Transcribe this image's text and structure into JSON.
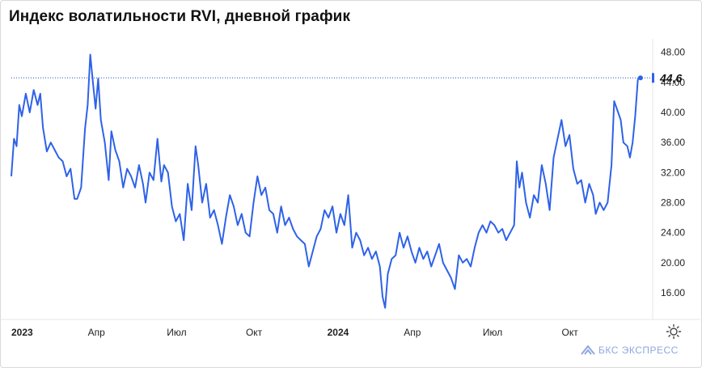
{
  "title": "Индекс волатильности RVI, дневной график",
  "brand": "БКС ЭКСПРЕСС",
  "icons": {
    "settings": "settings-sun-icon",
    "brand": "bks-logo-icon"
  },
  "colors": {
    "line": "#2e62e8",
    "guide": "#1f4fd1",
    "grid": "#e3e3e3",
    "text": "#222222",
    "brand": "#8fa7df"
  },
  "chart_data": {
    "type": "line",
    "title": "Индекс волатильности RVI, дневной график",
    "xlabel": "",
    "ylabel": "",
    "ylim": [
      12,
      50
    ],
    "yticks": [
      "48.00",
      "44.00",
      "40.00",
      "36.00",
      "32.00",
      "28.00",
      "24.00",
      "20.00",
      "16.00"
    ],
    "ytick_values": [
      48,
      44,
      40,
      36,
      32,
      28,
      24,
      20,
      16
    ],
    "x_ticks": [
      {
        "label": "2023",
        "month": 0,
        "bold": true
      },
      {
        "label": "Апр",
        "month": 3,
        "bold": false
      },
      {
        "label": "Июл",
        "month": 6,
        "bold": false
      },
      {
        "label": "Окт",
        "month": 9,
        "bold": false
      },
      {
        "label": "2024",
        "month": 12,
        "bold": true
      },
      {
        "label": "Апр",
        "month": 15,
        "bold": false
      },
      {
        "label": "Июл",
        "month": 18,
        "bold": false
      },
      {
        "label": "Окт",
        "month": 21,
        "bold": false
      }
    ],
    "last_value": 44.6,
    "last_value_label": "44,6",
    "y_axis_position": "right",
    "grid": false,
    "series": [
      {
        "x_unit": "months since 2023-01",
        "points": [
          [
            0.0,
            31.5
          ],
          [
            0.1,
            36.5
          ],
          [
            0.2,
            35.5
          ],
          [
            0.3,
            41
          ],
          [
            0.4,
            39.5
          ],
          [
            0.55,
            42.5
          ],
          [
            0.7,
            40
          ],
          [
            0.85,
            43
          ],
          [
            1.0,
            41
          ],
          [
            1.1,
            42.5
          ],
          [
            1.2,
            38
          ],
          [
            1.35,
            34.8
          ],
          [
            1.5,
            36
          ],
          [
            1.65,
            35
          ],
          [
            1.8,
            34
          ],
          [
            1.95,
            33.5
          ],
          [
            2.1,
            31.5
          ],
          [
            2.25,
            32.5
          ],
          [
            2.4,
            28.5
          ],
          [
            2.5,
            28.5
          ],
          [
            2.65,
            30
          ],
          [
            2.8,
            37.8
          ],
          [
            2.9,
            41
          ],
          [
            3.0,
            47.7
          ],
          [
            3.1,
            44
          ],
          [
            3.2,
            40.5
          ],
          [
            3.3,
            44.5
          ],
          [
            3.4,
            39
          ],
          [
            3.55,
            36
          ],
          [
            3.7,
            31
          ],
          [
            3.8,
            37.5
          ],
          [
            3.95,
            35
          ],
          [
            4.1,
            33.5
          ],
          [
            4.25,
            30
          ],
          [
            4.4,
            32.5
          ],
          [
            4.55,
            31.5
          ],
          [
            4.7,
            30
          ],
          [
            4.85,
            33
          ],
          [
            5.0,
            30.5
          ],
          [
            5.1,
            28
          ],
          [
            5.25,
            32
          ],
          [
            5.4,
            31
          ],
          [
            5.55,
            36.5
          ],
          [
            5.7,
            30.8
          ],
          [
            5.8,
            33
          ],
          [
            5.95,
            32
          ],
          [
            6.1,
            27.5
          ],
          [
            6.25,
            25.5
          ],
          [
            6.4,
            26.5
          ],
          [
            6.55,
            23
          ],
          [
            6.7,
            30.5
          ],
          [
            6.85,
            27
          ],
          [
            7.0,
            35.5
          ],
          [
            7.1,
            33
          ],
          [
            7.25,
            28
          ],
          [
            7.4,
            30.5
          ],
          [
            7.55,
            26
          ],
          [
            7.7,
            27
          ],
          [
            7.85,
            25
          ],
          [
            8.0,
            22.5
          ],
          [
            8.15,
            26
          ],
          [
            8.3,
            29
          ],
          [
            8.45,
            27.5
          ],
          [
            8.6,
            25
          ],
          [
            8.75,
            26.5
          ],
          [
            8.9,
            24
          ],
          [
            9.05,
            23.5
          ],
          [
            9.2,
            28
          ],
          [
            9.35,
            31.5
          ],
          [
            9.5,
            29
          ],
          [
            9.65,
            30
          ],
          [
            9.8,
            27
          ],
          [
            9.95,
            26.5
          ],
          [
            10.1,
            24
          ],
          [
            10.25,
            27.5
          ],
          [
            10.4,
            25
          ],
          [
            10.55,
            26
          ],
          [
            10.7,
            24.5
          ],
          [
            10.85,
            23.5
          ],
          [
            11.0,
            23
          ],
          [
            11.15,
            22.5
          ],
          [
            11.3,
            19.5
          ],
          [
            11.45,
            21.5
          ],
          [
            11.6,
            23.5
          ],
          [
            11.75,
            24.5
          ],
          [
            11.9,
            27
          ],
          [
            12.05,
            26
          ],
          [
            12.2,
            27.5
          ],
          [
            12.35,
            24
          ],
          [
            12.5,
            26.5
          ],
          [
            12.65,
            25
          ],
          [
            12.8,
            29
          ],
          [
            12.95,
            22
          ],
          [
            13.1,
            24
          ],
          [
            13.25,
            23
          ],
          [
            13.4,
            21
          ],
          [
            13.55,
            22
          ],
          [
            13.7,
            20.5
          ],
          [
            13.85,
            21.5
          ],
          [
            14.0,
            19.5
          ],
          [
            14.1,
            15.5
          ],
          [
            14.2,
            14
          ],
          [
            14.3,
            18.5
          ],
          [
            14.45,
            20.5
          ],
          [
            14.6,
            21
          ],
          [
            14.75,
            24
          ],
          [
            14.9,
            22
          ],
          [
            15.05,
            23.5
          ],
          [
            15.2,
            21.5
          ],
          [
            15.35,
            20
          ],
          [
            15.5,
            22
          ],
          [
            15.65,
            20.5
          ],
          [
            15.8,
            21.5
          ],
          [
            15.95,
            19.5
          ],
          [
            16.1,
            21
          ],
          [
            16.25,
            22.5
          ],
          [
            16.4,
            20
          ],
          [
            16.55,
            19
          ],
          [
            16.7,
            18
          ],
          [
            16.85,
            16.5
          ],
          [
            17.0,
            21
          ],
          [
            17.15,
            20
          ],
          [
            17.3,
            20.5
          ],
          [
            17.45,
            19.5
          ],
          [
            17.6,
            22
          ],
          [
            17.75,
            24
          ],
          [
            17.9,
            25
          ],
          [
            18.05,
            24
          ],
          [
            18.2,
            25.5
          ],
          [
            18.35,
            25
          ],
          [
            18.5,
            24
          ],
          [
            18.65,
            24.5
          ],
          [
            18.8,
            23
          ],
          [
            18.95,
            24
          ],
          [
            19.1,
            25
          ],
          [
            19.2,
            33.5
          ],
          [
            19.3,
            30
          ],
          [
            19.4,
            32
          ],
          [
            19.55,
            28
          ],
          [
            19.7,
            26
          ],
          [
            19.85,
            29
          ],
          [
            20.0,
            28
          ],
          [
            20.15,
            33
          ],
          [
            20.3,
            30.5
          ],
          [
            20.45,
            27
          ],
          [
            20.6,
            34
          ],
          [
            20.75,
            36.5
          ],
          [
            20.9,
            39
          ],
          [
            21.05,
            35.5
          ],
          [
            21.2,
            37
          ],
          [
            21.35,
            32.5
          ],
          [
            21.5,
            30.5
          ],
          [
            21.65,
            31
          ],
          [
            21.8,
            28
          ],
          [
            21.95,
            30.5
          ],
          [
            22.1,
            29
          ],
          [
            22.2,
            26.5
          ],
          [
            22.35,
            28
          ],
          [
            22.5,
            27
          ],
          [
            22.65,
            28
          ],
          [
            22.8,
            33
          ],
          [
            22.9,
            41.5
          ],
          [
            23.05,
            40
          ],
          [
            23.15,
            39
          ],
          [
            23.25,
            36
          ],
          [
            23.4,
            35.5
          ],
          [
            23.5,
            34
          ],
          [
            23.6,
            36
          ],
          [
            23.7,
            39.5
          ],
          [
            23.8,
            44.4
          ],
          [
            23.9,
            44.6
          ]
        ]
      }
    ]
  }
}
